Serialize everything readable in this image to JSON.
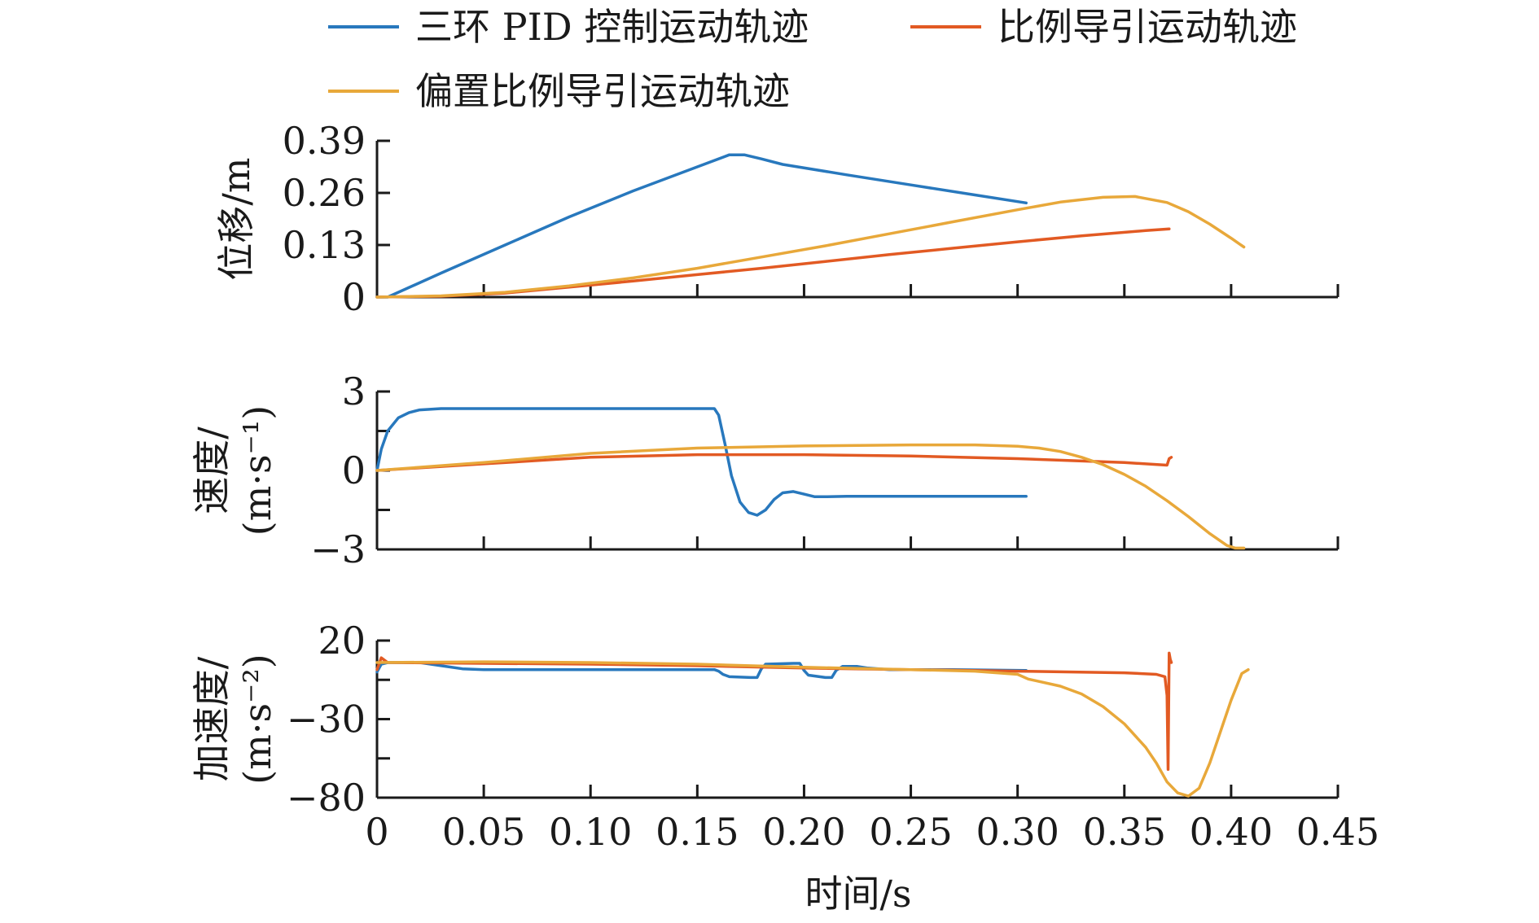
{
  "chart_data": {
    "type": "line",
    "legend": {
      "placement": "top",
      "entries": [
        {
          "label": "三环 PID 控制运动轨迹",
          "color": "#2878bd"
        },
        {
          "label": "比例导引运动轨迹",
          "color": "#e25a23"
        },
        {
          "label": "偏置比例导引运动轨迹",
          "color": "#e8a83a"
        }
      ]
    },
    "x_axis": {
      "label": "时间/s",
      "range": [
        0,
        0.45
      ],
      "ticks": [
        0,
        0.05,
        0.1,
        0.15,
        0.2,
        0.25,
        0.3,
        0.35,
        0.4,
        0.45
      ],
      "tick_labels": [
        "0",
        "0.05",
        "0.10",
        "0.15",
        "0.20",
        "0.25",
        "0.30",
        "0.35",
        "0.40",
        "0.45"
      ]
    },
    "panels": [
      {
        "id": "displacement",
        "ylabel": "位移/m",
        "ylabel_lines": [
          "位移/m"
        ],
        "ylim": [
          0,
          0.39
        ],
        "yticks": [
          0,
          0.13,
          0.26,
          0.39
        ],
        "ytick_labels": [
          "0",
          "0.13",
          "0.26",
          "0.39"
        ],
        "series": [
          {
            "legend_index": 0,
            "color": "#2878bd",
            "x": [
              0.0,
              0.005,
              0.03,
              0.06,
              0.09,
              0.12,
              0.15,
              0.165,
              0.172,
              0.18,
              0.19,
              0.22,
              0.25,
              0.28,
              0.304
            ],
            "y": [
              0.0,
              0.0,
              0.06,
              0.13,
              0.2,
              0.265,
              0.325,
              0.355,
              0.355,
              0.345,
              0.331,
              0.305,
              0.28,
              0.255,
              0.235
            ]
          },
          {
            "legend_index": 1,
            "color": "#e25a23",
            "x": [
              0.0,
              0.03,
              0.06,
              0.09,
              0.12,
              0.15,
              0.18,
              0.21,
              0.24,
              0.27,
              0.3,
              0.33,
              0.36,
              0.371
            ],
            "y": [
              0.0,
              0.002,
              0.01,
              0.025,
              0.04,
              0.056,
              0.072,
              0.089,
              0.106,
              0.122,
              0.138,
              0.153,
              0.166,
              0.17
            ]
          },
          {
            "legend_index": 2,
            "color": "#e8a83a",
            "x": [
              0.0,
              0.03,
              0.06,
              0.09,
              0.12,
              0.15,
              0.18,
              0.21,
              0.24,
              0.27,
              0.3,
              0.32,
              0.34,
              0.355,
              0.37,
              0.38,
              0.39,
              0.4,
              0.406
            ],
            "y": [
              0.0,
              0.003,
              0.012,
              0.028,
              0.048,
              0.072,
              0.1,
              0.128,
              0.158,
              0.188,
              0.218,
              0.237,
              0.249,
              0.251,
              0.236,
              0.213,
              0.182,
              0.147,
              0.125
            ]
          }
        ]
      },
      {
        "id": "velocity",
        "ylabel": "速度/(m·s⁻¹)",
        "ylabel_lines": [
          "速度/",
          "(m·s⁻¹)"
        ],
        "ylim": [
          -3,
          3
        ],
        "yticks": [
          -3,
          -1.5,
          0,
          1.5,
          3
        ],
        "ytick_labels": [
          "−3",
          "",
          "0",
          "",
          "3"
        ],
        "series": [
          {
            "legend_index": 0,
            "color": "#2878bd",
            "x": [
              0.0,
              0.002,
              0.005,
              0.01,
              0.015,
              0.02,
              0.03,
              0.05,
              0.1,
              0.158,
              0.16,
              0.163,
              0.166,
              0.17,
              0.174,
              0.178,
              0.182,
              0.186,
              0.19,
              0.195,
              0.2,
              0.205,
              0.21,
              0.22,
              0.24,
              0.27,
              0.304
            ],
            "y": [
              0.0,
              0.8,
              1.5,
              2.0,
              2.2,
              2.3,
              2.35,
              2.35,
              2.35,
              2.35,
              2.1,
              1.0,
              -0.2,
              -1.2,
              -1.6,
              -1.7,
              -1.5,
              -1.1,
              -0.85,
              -0.8,
              -0.9,
              -1.0,
              -1.0,
              -0.98,
              -0.98,
              -0.98,
              -0.98
            ]
          },
          {
            "legend_index": 1,
            "color": "#e25a23",
            "x": [
              0.0,
              0.05,
              0.1,
              0.15,
              0.2,
              0.25,
              0.3,
              0.35,
              0.37,
              0.371,
              0.372
            ],
            "y": [
              0.0,
              0.25,
              0.5,
              0.6,
              0.6,
              0.55,
              0.45,
              0.3,
              0.2,
              0.45,
              0.5
            ]
          },
          {
            "legend_index": 2,
            "color": "#e8a83a",
            "x": [
              0.0,
              0.05,
              0.1,
              0.15,
              0.2,
              0.25,
              0.28,
              0.3,
              0.31,
              0.32,
              0.33,
              0.34,
              0.35,
              0.36,
              0.37,
              0.38,
              0.39,
              0.398,
              0.402,
              0.406
            ],
            "y": [
              0.0,
              0.3,
              0.65,
              0.85,
              0.93,
              0.97,
              0.97,
              0.92,
              0.85,
              0.72,
              0.5,
              0.22,
              -0.15,
              -0.6,
              -1.15,
              -1.75,
              -2.4,
              -2.85,
              -2.95,
              -2.95
            ]
          }
        ]
      },
      {
        "id": "acceleration",
        "ylabel": "加速度/(m·s⁻²)",
        "ylabel_lines": [
          "加速度/",
          "(m·s⁻²)"
        ],
        "ylim": [
          -80,
          20
        ],
        "yticks": [
          -80,
          -55,
          -30,
          -5,
          20
        ],
        "ytick_labels": [
          "−80",
          "",
          "−30",
          "",
          "20"
        ],
        "series": [
          {
            "legend_index": 0,
            "color": "#2878bd",
            "x": [
              0.0,
              0.002,
              0.005,
              0.02,
              0.03,
              0.04,
              0.05,
              0.1,
              0.158,
              0.16,
              0.162,
              0.165,
              0.175,
              0.178,
              0.18,
              0.182,
              0.195,
              0.198,
              0.2,
              0.202,
              0.21,
              0.213,
              0.215,
              0.218,
              0.222,
              0.225,
              0.23,
              0.24,
              0.27,
              0.304
            ],
            "y": [
              0.0,
              5.0,
              6.0,
              6.0,
              4.0,
              2.0,
              1.5,
              1.5,
              1.5,
              0.5,
              -1.5,
              -3.0,
              -3.5,
              -3.5,
              2.0,
              5.0,
              5.5,
              5.5,
              1.0,
              -2.0,
              -3.5,
              -3.5,
              1.0,
              3.5,
              3.5,
              3.5,
              2.5,
              1.5,
              1.5,
              1.0
            ]
          },
          {
            "legend_index": 1,
            "color": "#e25a23",
            "x": [
              0.0,
              0.002,
              0.005,
              0.05,
              0.1,
              0.15,
              0.2,
              0.25,
              0.3,
              0.35,
              0.365,
              0.369,
              0.37,
              0.3705,
              0.371,
              0.3715,
              0.372
            ],
            "y": [
              1.5,
              9.0,
              6.0,
              5.5,
              5.0,
              4.0,
              2.5,
              1.5,
              0.5,
              -0.5,
              -1.5,
              -3.0,
              -15.0,
              -62.0,
              12.0,
              8.0,
              6.0
            ]
          },
          {
            "legend_index": 2,
            "color": "#e8a83a",
            "x": [
              0.0,
              0.05,
              0.1,
              0.15,
              0.2,
              0.25,
              0.28,
              0.3,
              0.305,
              0.31,
              0.32,
              0.33,
              0.34,
              0.35,
              0.36,
              0.365,
              0.37,
              0.375,
              0.38,
              0.385,
              0.39,
              0.395,
              0.4,
              0.405,
              0.408
            ],
            "y": [
              6.0,
              6.5,
              6.0,
              5.0,
              3.0,
              1.5,
              0.5,
              -1.5,
              -4.5,
              -6.0,
              -9.0,
              -14.0,
              -22.0,
              -33.0,
              -48.0,
              -58.0,
              -70.0,
              -77.0,
              -79.0,
              -74.0,
              -58.0,
              -38.0,
              -18.0,
              -1.0,
              1.5
            ]
          }
        ]
      }
    ]
  }
}
